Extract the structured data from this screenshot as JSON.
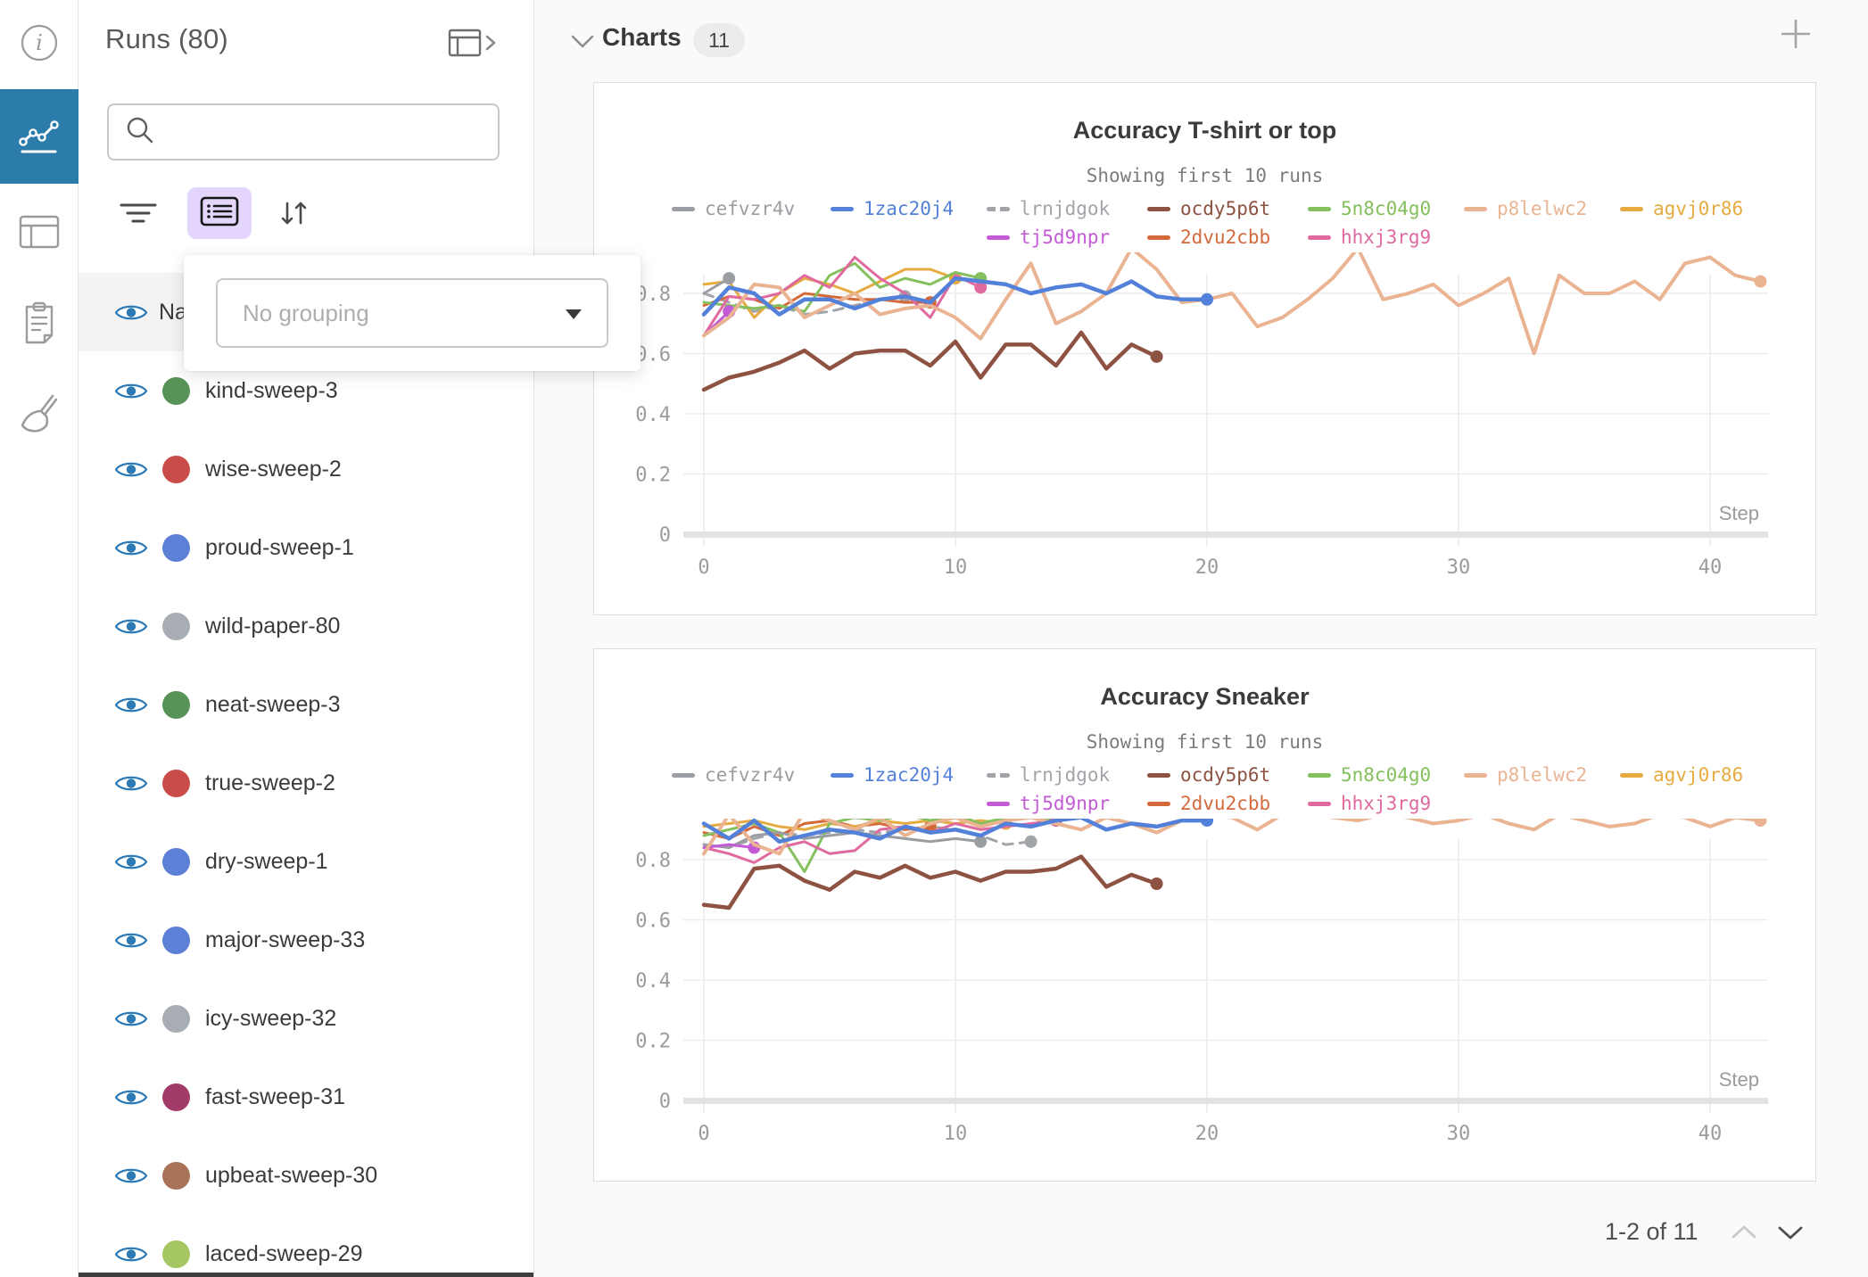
{
  "left_rail": {
    "active_color": "#2b7bab",
    "items": [
      {
        "icon": "info-icon",
        "active": false
      },
      {
        "icon": "panels-chart-icon",
        "active": true
      },
      {
        "icon": "runs-table-icon",
        "active": false
      },
      {
        "icon": "notes-icon",
        "active": false
      },
      {
        "icon": "sweep-broom-icon",
        "active": false
      }
    ]
  },
  "sidebar": {
    "title": "Runs (80)",
    "search_placeholder": "",
    "header_row": {
      "label": "Name"
    },
    "grouping_popup": {
      "placeholder": "No grouping"
    },
    "eye_color": "#2d79b5",
    "runs": [
      {
        "name": "kind-sweep-3",
        "color": "#579257"
      },
      {
        "name": "wise-sweep-2",
        "color": "#c94c48"
      },
      {
        "name": "proud-sweep-1",
        "color": "#5c80d6"
      },
      {
        "name": "wild-paper-80",
        "color": "#a8adb4"
      },
      {
        "name": "neat-sweep-3",
        "color": "#579257"
      },
      {
        "name": "true-sweep-2",
        "color": "#c94c48"
      },
      {
        "name": "dry-sweep-1",
        "color": "#5c80d6"
      },
      {
        "name": "major-sweep-33",
        "color": "#5c80d6"
      },
      {
        "name": "icy-sweep-32",
        "color": "#a8adb4"
      },
      {
        "name": "fast-sweep-31",
        "color": "#a23a68"
      },
      {
        "name": "upbeat-sweep-30",
        "color": "#a9735a"
      },
      {
        "name": "laced-sweep-29",
        "color": "#a5c663"
      }
    ]
  },
  "main": {
    "section_title": "Charts",
    "section_count": "11",
    "pagination": {
      "label": "1-2 of 11"
    }
  },
  "chart_data": [
    {
      "type": "line",
      "title": "Accuracy T-shirt or top",
      "subtitle": "Showing first 10 runs",
      "xlabel": "Step",
      "ylim": [
        0,
        1
      ],
      "xticks": [
        0,
        10,
        20,
        30,
        40
      ],
      "yticks": [
        0,
        0.2,
        0.4,
        0.6,
        0.8
      ],
      "grid": true,
      "legend_position": "top",
      "series": [
        {
          "name": "lrnjdgok",
          "color": "#a1a4a8",
          "dash": true,
          "width": 3,
          "legend_row": 1,
          "legend_col": 3,
          "values": [
            0.8,
            0.77,
            0.74,
            0.76,
            0.73,
            0.74,
            0.76,
            0.78,
            0.79
          ]
        },
        {
          "name": "2dvu2cbb",
          "color": "#d4693c",
          "dash": false,
          "width": 3,
          "legend_row": 2,
          "legend_col": 4,
          "values": [
            0.76,
            0.79,
            0.78,
            0.75,
            0.8,
            0.79,
            0.78,
            0.78,
            0.77,
            0.77
          ]
        },
        {
          "name": "agvj0r86",
          "color": "#e6ab40",
          "dash": false,
          "width": 3,
          "legend_row": 1,
          "legend_col": 7,
          "values": [
            0.83,
            0.84,
            0.72,
            0.8,
            0.85,
            0.83,
            0.8,
            0.84,
            0.88,
            0.88,
            0.85
          ]
        },
        {
          "name": "5n8c04g0",
          "color": "#84c05d",
          "dash": false,
          "width": 3,
          "legend_row": 1,
          "legend_col": 5,
          "values": [
            0.77,
            0.76,
            0.75,
            0.76,
            0.74,
            0.86,
            0.9,
            0.82,
            0.85,
            0.83,
            0.87,
            0.85
          ]
        },
        {
          "name": "hhxj3rg9",
          "color": "#e0699f",
          "dash": false,
          "width": 3,
          "legend_row": 2,
          "legend_col": 5,
          "values": [
            0.66,
            0.79,
            0.78,
            0.8,
            0.86,
            0.82,
            0.92,
            0.85,
            0.8,
            0.72,
            0.86,
            0.82
          ]
        },
        {
          "name": "cefvzr4v",
          "color": "#9a9da1",
          "dash": false,
          "width": 3,
          "legend_row": 1,
          "legend_col": 1,
          "values": [
            0.8,
            0.85
          ]
        },
        {
          "name": "tj5d9npr",
          "color": "#c35ad6",
          "dash": false,
          "width": 3,
          "legend_row": 2,
          "legend_col": 3,
          "values": [
            0.66,
            0.74
          ]
        },
        {
          "name": "p8lelwc2",
          "color": "#eab493",
          "dash": false,
          "width": 4,
          "legend_row": 1,
          "legend_col": 6,
          "values": [
            0.66,
            0.72,
            0.83,
            0.82,
            0.72,
            0.76,
            0.8,
            0.73,
            0.75,
            0.76,
            0.72,
            0.65,
            0.78,
            0.9,
            0.7,
            0.74,
            0.8,
            0.95,
            0.88,
            0.77,
            0.78,
            0.8,
            0.69,
            0.72,
            0.78,
            0.85,
            0.95,
            0.78,
            0.8,
            0.83,
            0.76,
            0.8,
            0.85,
            0.6,
            0.86,
            0.8,
            0.8,
            0.84,
            0.78,
            0.9,
            0.92,
            0.86,
            0.84
          ]
        },
        {
          "name": "ocdy5p6t",
          "color": "#8d5241",
          "dash": false,
          "width": 4.5,
          "legend_row": 1,
          "legend_col": 4,
          "values": [
            0.48,
            0.52,
            0.54,
            0.57,
            0.61,
            0.55,
            0.6,
            0.61,
            0.61,
            0.56,
            0.64,
            0.52,
            0.63,
            0.63,
            0.56,
            0.67,
            0.55,
            0.63,
            0.59
          ]
        },
        {
          "name": "1zac20j4",
          "color": "#5380d9",
          "dash": false,
          "width": 4.5,
          "legend_row": 1,
          "legend_col": 2,
          "values": [
            0.73,
            0.82,
            0.8,
            0.73,
            0.78,
            0.78,
            0.75,
            0.78,
            0.79,
            0.77,
            0.85,
            0.84,
            0.83,
            0.8,
            0.82,
            0.83,
            0.8,
            0.84,
            0.79,
            0.78,
            0.78
          ]
        }
      ]
    },
    {
      "type": "line",
      "title": "Accuracy Sneaker",
      "subtitle": "Showing first 10 runs",
      "xlabel": "Step",
      "ylim": [
        0,
        1
      ],
      "xticks": [
        0,
        10,
        20,
        30,
        40
      ],
      "yticks": [
        0,
        0.2,
        0.4,
        0.6,
        0.8
      ],
      "grid": true,
      "legend_position": "top",
      "series": [
        {
          "name": "lrnjdgok",
          "color": "#a1a4a8",
          "dash": true,
          "width": 3,
          "legend_row": 1,
          "legend_col": 3,
          "values": [
            0.85,
            0.84,
            0.87,
            0.89,
            0.88,
            0.89,
            0.9,
            0.89,
            0.9,
            0.91,
            0.9,
            0.88,
            0.85,
            0.86
          ]
        },
        {
          "name": "2dvu2cbb",
          "color": "#d4693c",
          "dash": false,
          "width": 3,
          "legend_row": 2,
          "legend_col": 4,
          "values": [
            0.89,
            0.87,
            0.91,
            0.88,
            0.92,
            0.93,
            0.91,
            0.92,
            0.9,
            0.91
          ]
        },
        {
          "name": "agvj0r86",
          "color": "#e6ab40",
          "dash": false,
          "width": 3,
          "legend_row": 1,
          "legend_col": 7,
          "values": [
            0.91,
            0.92,
            0.93,
            0.91,
            0.9,
            0.92,
            0.91,
            0.93,
            0.92,
            0.93,
            0.92,
            0.93,
            0.92
          ]
        },
        {
          "name": "5n8c04g0",
          "color": "#84c05d",
          "dash": false,
          "width": 3,
          "legend_row": 1,
          "legend_col": 5,
          "values": [
            0.88,
            0.9,
            0.92,
            0.89,
            0.76,
            0.92,
            0.94,
            0.93,
            0.95,
            0.93,
            0.95,
            0.92,
            0.94,
            0.95,
            0.93
          ]
        },
        {
          "name": "hhxj3rg9",
          "color": "#e0699f",
          "dash": false,
          "width": 3,
          "legend_row": 2,
          "legend_col": 5,
          "values": [
            0.84,
            0.82,
            0.79,
            0.84,
            0.86,
            0.82,
            0.83,
            0.9,
            0.91,
            0.89,
            0.92,
            0.9,
            0.91,
            0.92,
            0.93
          ]
        },
        {
          "name": "cefvzr4v",
          "color": "#9a9da1",
          "dash": false,
          "width": 3,
          "legend_row": 1,
          "legend_col": 1,
          "values": [
            0.85,
            0.84,
            0.88,
            0.89,
            0.87,
            0.88,
            0.89,
            0.88,
            0.87,
            0.86,
            0.87,
            0.86
          ]
        },
        {
          "name": "tj5d9npr",
          "color": "#c35ad6",
          "dash": false,
          "width": 3,
          "legend_row": 2,
          "legend_col": 3,
          "values": [
            0.84,
            0.85,
            0.84
          ]
        },
        {
          "name": "p8lelwc2",
          "color": "#eab493",
          "dash": false,
          "width": 4,
          "legend_row": 1,
          "legend_col": 6,
          "values": [
            0.82,
            0.95,
            0.85,
            0.82,
            0.96,
            0.93,
            0.9,
            0.94,
            0.88,
            0.92,
            0.94,
            0.91,
            0.93,
            0.94,
            0.92,
            0.9,
            0.94,
            0.92,
            0.89,
            0.93,
            0.95,
            0.94,
            0.9,
            0.95,
            0.96,
            0.94,
            0.93,
            0.95,
            0.94,
            0.92,
            0.93,
            0.95,
            0.92,
            0.9,
            0.95,
            0.93,
            0.91,
            0.92,
            0.95,
            0.94,
            0.91,
            0.94,
            0.93
          ]
        },
        {
          "name": "ocdy5p6t",
          "color": "#8d5241",
          "dash": false,
          "width": 4.5,
          "legend_row": 1,
          "legend_col": 4,
          "values": [
            0.65,
            0.64,
            0.77,
            0.78,
            0.73,
            0.7,
            0.76,
            0.74,
            0.78,
            0.74,
            0.76,
            0.73,
            0.76,
            0.76,
            0.77,
            0.81,
            0.71,
            0.75,
            0.72
          ]
        },
        {
          "name": "1zac20j4",
          "color": "#5380d9",
          "dash": false,
          "width": 4.5,
          "legend_row": 1,
          "legend_col": 2,
          "values": [
            0.92,
            0.87,
            0.93,
            0.86,
            0.88,
            0.9,
            0.89,
            0.87,
            0.91,
            0.89,
            0.9,
            0.88,
            0.92,
            0.91,
            0.93,
            0.94,
            0.9,
            0.92,
            0.91,
            0.93,
            0.93
          ]
        }
      ]
    }
  ]
}
